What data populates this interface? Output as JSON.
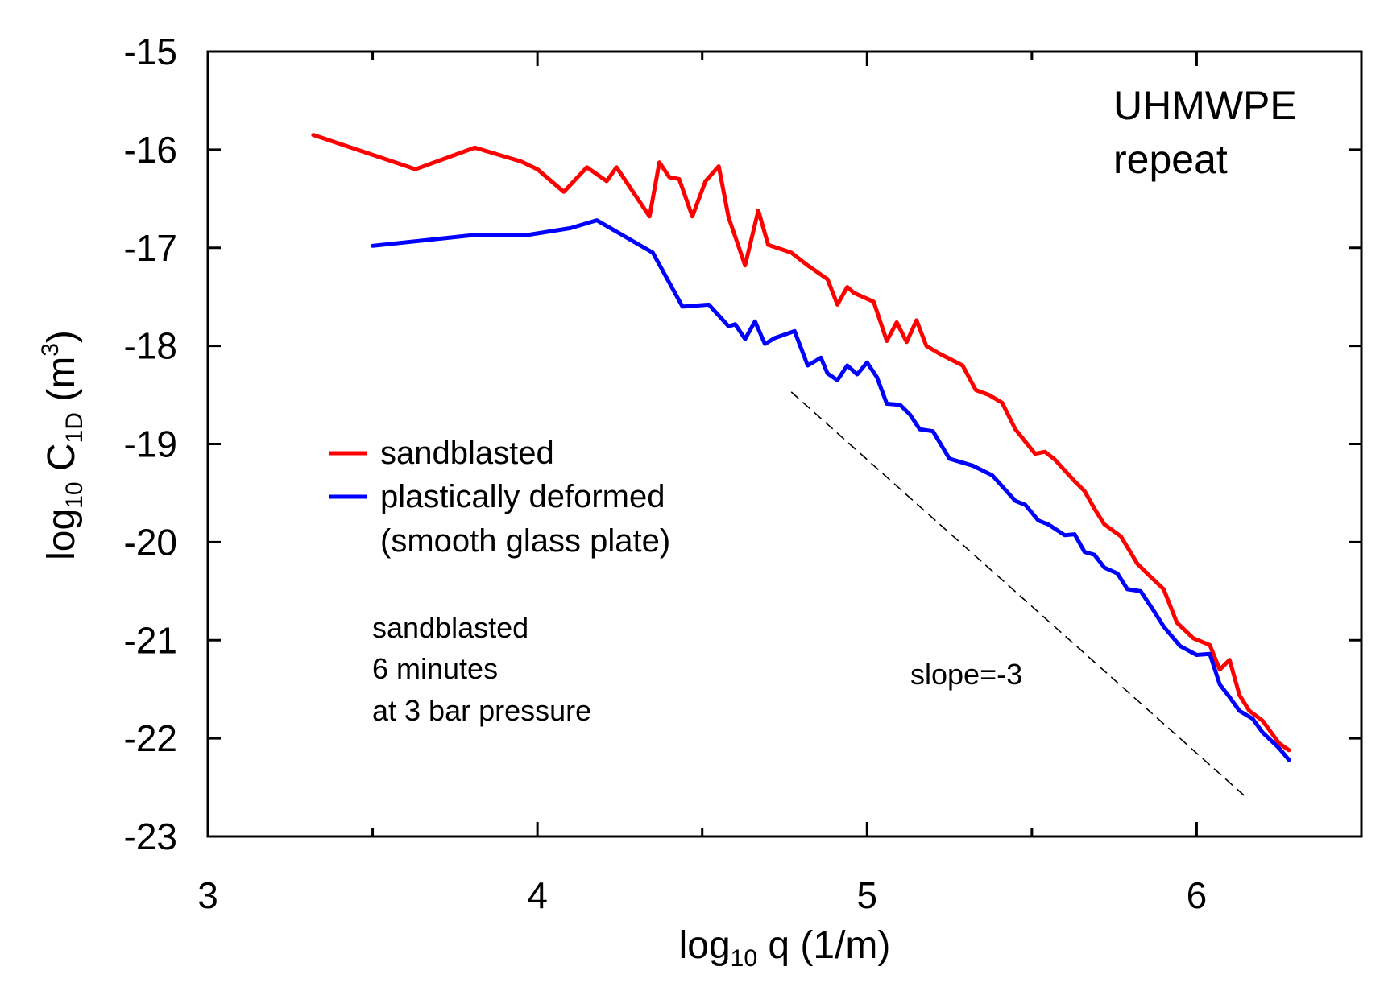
{
  "chart_data": {
    "type": "line",
    "xlabel": {
      "main": "log",
      "sub": "10",
      "rest": " q  (1/m)"
    },
    "ylabel": {
      "main": "log",
      "sub": "10",
      "mid": " C",
      "sub2": "1D",
      "rest": "  (m",
      "sup": "3",
      "close": ")"
    },
    "xlim": [
      3,
      6.5
    ],
    "ylim": [
      -23,
      -15
    ],
    "xticks": [
      3,
      4,
      5,
      6
    ],
    "xtick_labels": [
      "3",
      "4",
      "5",
      "6"
    ],
    "yticks": [
      -15,
      -16,
      -17,
      -18,
      -19,
      -20,
      -21,
      -22,
      -23
    ],
    "ytick_labels": [
      "-15",
      "-16",
      "-17",
      "-18",
      "-19",
      "-20",
      "-21",
      "-22",
      "-23"
    ],
    "grid": false,
    "legend_position": "left-middle",
    "series": [
      {
        "name": "sandblasted",
        "color": "#ff0000",
        "x": [
          3.32,
          3.63,
          3.81,
          3.95,
          4.0,
          4.08,
          4.15,
          4.21,
          4.24,
          4.34,
          4.37,
          4.4,
          4.43,
          4.47,
          4.51,
          4.55,
          4.58,
          4.63,
          4.67,
          4.7,
          4.77,
          4.82,
          4.88,
          4.91,
          4.94,
          4.96,
          5.02,
          5.06,
          5.09,
          5.12,
          5.15,
          5.18,
          5.22,
          5.29,
          5.33,
          5.37,
          5.41,
          5.45,
          5.51,
          5.54,
          5.57,
          5.63,
          5.66,
          5.69,
          5.72,
          5.77,
          5.82,
          5.85,
          5.9,
          5.94,
          5.99,
          6.04,
          6.07,
          6.1,
          6.13,
          6.16,
          6.2,
          6.25,
          6.28
        ],
        "y": [
          -15.85,
          -16.2,
          -15.98,
          -16.12,
          -16.2,
          -16.43,
          -16.18,
          -16.32,
          -16.18,
          -16.68,
          -16.13,
          -16.28,
          -16.3,
          -16.68,
          -16.32,
          -16.17,
          -16.69,
          -17.18,
          -16.62,
          -16.97,
          -17.05,
          -17.18,
          -17.32,
          -17.58,
          -17.4,
          -17.46,
          -17.55,
          -17.95,
          -17.76,
          -17.96,
          -17.74,
          -18.0,
          -18.08,
          -18.2,
          -18.45,
          -18.5,
          -18.58,
          -18.85,
          -19.1,
          -19.08,
          -19.16,
          -19.38,
          -19.48,
          -19.66,
          -19.82,
          -19.94,
          -20.22,
          -20.32,
          -20.48,
          -20.82,
          -20.98,
          -21.05,
          -21.3,
          -21.2,
          -21.56,
          -21.72,
          -21.82,
          -22.05,
          -22.12
        ]
      },
      {
        "name": "plastically deformed",
        "color": "#0000ff",
        "x": [
          3.5,
          3.81,
          3.97,
          4.1,
          4.18,
          4.35,
          4.44,
          4.52,
          4.58,
          4.6,
          4.63,
          4.66,
          4.69,
          4.72,
          4.78,
          4.82,
          4.86,
          4.88,
          4.91,
          4.94,
          4.97,
          5.0,
          5.03,
          5.06,
          5.1,
          5.13,
          5.16,
          5.2,
          5.25,
          5.32,
          5.38,
          5.45,
          5.48,
          5.52,
          5.55,
          5.6,
          5.63,
          5.66,
          5.69,
          5.72,
          5.76,
          5.79,
          5.83,
          5.87,
          5.9,
          5.95,
          6.0,
          6.04,
          6.07,
          6.1,
          6.13,
          6.17,
          6.2,
          6.25,
          6.28
        ],
        "y": [
          -16.98,
          -16.87,
          -16.87,
          -16.8,
          -16.72,
          -17.05,
          -17.6,
          -17.58,
          -17.8,
          -17.78,
          -17.93,
          -17.75,
          -17.98,
          -17.92,
          -17.85,
          -18.2,
          -18.12,
          -18.28,
          -18.35,
          -18.2,
          -18.29,
          -18.17,
          -18.32,
          -18.59,
          -18.6,
          -18.7,
          -18.85,
          -18.87,
          -19.15,
          -19.22,
          -19.32,
          -19.58,
          -19.62,
          -19.78,
          -19.82,
          -19.93,
          -19.92,
          -20.1,
          -20.13,
          -20.26,
          -20.32,
          -20.48,
          -20.5,
          -20.7,
          -20.86,
          -21.06,
          -21.15,
          -21.14,
          -21.45,
          -21.58,
          -21.72,
          -21.8,
          -21.94,
          -22.1,
          -22.22
        ]
      }
    ],
    "reference_line": {
      "label": "slope=-3",
      "style": "dashed",
      "from": [
        4.77,
        -18.47
      ],
      "to": [
        6.15,
        -22.6
      ]
    },
    "legend": [
      {
        "label": "sandblasted",
        "color": "#ff0000"
      },
      {
        "label": "plastically deformed",
        "color": "#0000ff"
      },
      {
        "label": "(smooth glass plate)",
        "color": null
      }
    ],
    "annotations": {
      "corner": [
        "UHMWPE",
        "repeat"
      ],
      "note": [
        "sandblasted",
        "6 minutes",
        "at 3 bar pressure"
      ],
      "slope": "slope=-3"
    }
  }
}
